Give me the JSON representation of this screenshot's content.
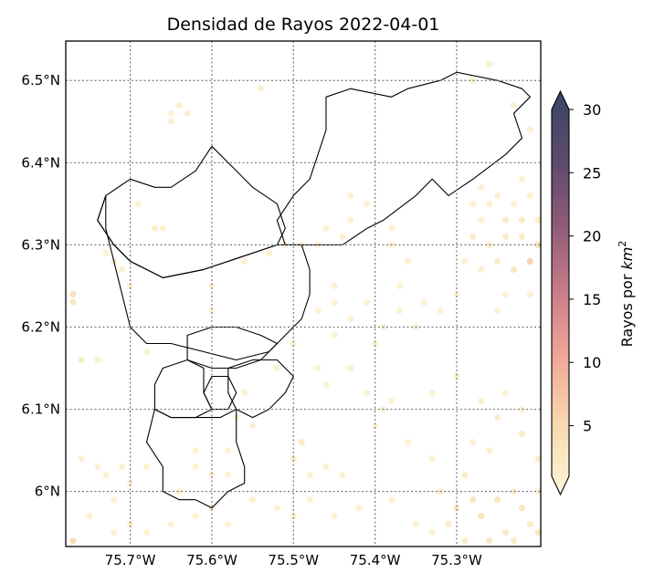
{
  "chart_data": {
    "type": "heatmap",
    "title": "Densidad de Rayos 2022-04-01",
    "xlabel": "",
    "ylabel": "",
    "xlim": [
      -75.779,
      -75.197
    ],
    "ylim": [
      5.933,
      6.548
    ],
    "x_ticks": [
      {
        "value": -75.7,
        "label": "75.7°W"
      },
      {
        "value": -75.6,
        "label": "75.6°W"
      },
      {
        "value": -75.5,
        "label": "75.5°W"
      },
      {
        "value": -75.4,
        "label": "75.4°W"
      },
      {
        "value": -75.3,
        "label": "75.3°W"
      }
    ],
    "y_ticks": [
      {
        "value": 6.0,
        "label": "6°N"
      },
      {
        "value": 6.1,
        "label": "6.1°N"
      },
      {
        "value": 6.2,
        "label": "6.2°N"
      },
      {
        "value": 6.3,
        "label": "6.3°N"
      },
      {
        "value": 6.4,
        "label": "6.4°N"
      },
      {
        "value": 6.5,
        "label": "6.5°N"
      }
    ],
    "grid": true,
    "colorbar": {
      "label": "Rayos por km²",
      "label_base": "Rayos por ",
      "label_var": "km",
      "label_exp": "2",
      "range": [
        1,
        30
      ],
      "extend": "both",
      "ticks": [
        {
          "value": 5,
          "label": "5"
        },
        {
          "value": 10,
          "label": "10"
        },
        {
          "value": 15,
          "label": "15"
        },
        {
          "value": 20,
          "label": "20"
        },
        {
          "value": 25,
          "label": "25"
        },
        {
          "value": 30,
          "label": "30"
        }
      ],
      "colors": [
        "#fdf6d6",
        "#f8dbb0",
        "#f1a997",
        "#c97d89",
        "#8f5b78",
        "#5b4a6d",
        "#3a4564"
      ]
    },
    "points": [
      [
        -75.77,
        5.94,
        6
      ],
      [
        -75.77,
        6.24,
        5
      ],
      [
        -75.77,
        6.23,
        4
      ],
      [
        -75.76,
        6.16,
        3
      ],
      [
        -75.74,
        6.16,
        2
      ],
      [
        -75.73,
        6.29,
        2
      ],
      [
        -75.71,
        6.27,
        2
      ],
      [
        -75.69,
        6.35,
        2
      ],
      [
        -75.68,
        6.17,
        2
      ],
      [
        -75.67,
        6.32,
        2
      ],
      [
        -75.76,
        6.04,
        2
      ],
      [
        -75.74,
        6.03,
        2
      ],
      [
        -75.73,
        6.02,
        2
      ],
      [
        -75.71,
        6.03,
        2
      ],
      [
        -75.7,
        6.01,
        2
      ],
      [
        -75.68,
        6.03,
        2
      ],
      [
        -75.72,
        5.99,
        2
      ],
      [
        -75.7,
        5.96,
        2
      ],
      [
        -75.75,
        5.97,
        2
      ],
      [
        -75.72,
        5.95,
        2
      ],
      [
        -75.68,
        5.95,
        2
      ],
      [
        -75.65,
        5.96,
        2
      ],
      [
        -75.62,
        5.97,
        2
      ],
      [
        -75.6,
        5.98,
        2
      ],
      [
        -75.64,
        6.0,
        2
      ],
      [
        -75.62,
        6.03,
        2
      ],
      [
        -75.58,
        6.02,
        2
      ],
      [
        -75.58,
        5.96,
        2
      ],
      [
        -75.55,
        5.99,
        2
      ],
      [
        -75.52,
        5.98,
        2
      ],
      [
        -75.5,
        6.04,
        3
      ],
      [
        -75.48,
        6.02,
        2
      ],
      [
        -75.46,
        6.03,
        2
      ],
      [
        -75.44,
        6.02,
        2
      ],
      [
        -75.48,
        5.99,
        2
      ],
      [
        -75.5,
        5.97,
        2
      ],
      [
        -75.45,
        5.97,
        2
      ],
      [
        -75.42,
        5.98,
        2
      ],
      [
        -75.38,
        5.99,
        2
      ],
      [
        -75.35,
        5.96,
        2
      ],
      [
        -75.32,
        6.0,
        3
      ],
      [
        -75.3,
        5.98,
        4
      ],
      [
        -75.29,
        6.02,
        3
      ],
      [
        -75.28,
        5.99,
        4
      ],
      [
        -75.27,
        5.97,
        5
      ],
      [
        -75.25,
        5.99,
        4
      ],
      [
        -75.23,
        6.0,
        3
      ],
      [
        -75.22,
        5.98,
        4
      ],
      [
        -75.21,
        5.96,
        3
      ],
      [
        -75.24,
        5.95,
        3
      ],
      [
        -75.31,
        5.96,
        3
      ],
      [
        -75.33,
        5.95,
        2
      ],
      [
        -75.29,
        5.94,
        3
      ],
      [
        -75.26,
        5.94,
        4
      ],
      [
        -75.23,
        5.94,
        3
      ],
      [
        -75.2,
        5.95,
        4
      ],
      [
        -75.2,
        6.0,
        2
      ],
      [
        -75.2,
        6.04,
        3
      ],
      [
        -75.22,
        6.07,
        3
      ],
      [
        -75.25,
        6.09,
        3
      ],
      [
        -75.27,
        6.11,
        3
      ],
      [
        -75.24,
        6.12,
        2
      ],
      [
        -75.22,
        6.1,
        2
      ],
      [
        -75.28,
        6.06,
        2
      ],
      [
        -75.26,
        6.05,
        2
      ],
      [
        -75.33,
        6.04,
        2
      ],
      [
        -75.36,
        6.06,
        2
      ],
      [
        -75.3,
        6.14,
        2
      ],
      [
        -75.33,
        6.12,
        2
      ],
      [
        -75.38,
        6.11,
        2
      ],
      [
        -75.28,
        6.31,
        3
      ],
      [
        -75.26,
        6.3,
        3
      ],
      [
        -75.24,
        6.31,
        3
      ],
      [
        -75.22,
        6.31,
        3
      ],
      [
        -75.2,
        6.3,
        5
      ],
      [
        -75.21,
        6.28,
        7
      ],
      [
        -75.23,
        6.27,
        4
      ],
      [
        -75.25,
        6.28,
        3
      ],
      [
        -75.27,
        6.27,
        2
      ],
      [
        -75.29,
        6.28,
        2
      ],
      [
        -75.24,
        6.33,
        3
      ],
      [
        -75.22,
        6.33,
        3
      ],
      [
        -75.2,
        6.33,
        3
      ],
      [
        -75.27,
        6.33,
        2
      ],
      [
        -75.26,
        6.35,
        2
      ],
      [
        -75.28,
        6.35,
        2
      ],
      [
        -75.24,
        6.24,
        2
      ],
      [
        -75.21,
        6.24,
        2
      ],
      [
        -75.25,
        6.22,
        2
      ],
      [
        -75.3,
        6.24,
        2
      ],
      [
        -75.32,
        6.22,
        2
      ],
      [
        -75.35,
        6.2,
        2
      ],
      [
        -75.37,
        6.22,
        2
      ],
      [
        -75.34,
        6.23,
        2
      ],
      [
        -75.39,
        6.2,
        2
      ],
      [
        -75.4,
        6.18,
        2
      ],
      [
        -75.45,
        6.19,
        2
      ],
      [
        -75.43,
        6.21,
        2
      ],
      [
        -75.47,
        6.22,
        2
      ],
      [
        -75.45,
        6.23,
        2
      ],
      [
        -75.47,
        6.15,
        2
      ],
      [
        -75.46,
        6.13,
        2
      ],
      [
        -75.43,
        6.15,
        2
      ],
      [
        -75.41,
        6.12,
        2
      ],
      [
        -75.4,
        6.08,
        2
      ],
      [
        -75.39,
        6.1,
        2
      ],
      [
        -75.5,
        6.18,
        2
      ],
      [
        -75.52,
        6.15,
        2
      ],
      [
        -75.56,
        6.12,
        2
      ],
      [
        -75.57,
        6.09,
        2
      ],
      [
        -75.55,
        6.08,
        2
      ],
      [
        -75.58,
        6.05,
        2
      ],
      [
        -75.62,
        6.05,
        2
      ],
      [
        -75.6,
        6.02,
        2
      ],
      [
        -75.6,
        6.25,
        2
      ],
      [
        -75.56,
        6.28,
        2
      ],
      [
        -75.53,
        6.29,
        2
      ],
      [
        -75.51,
        6.3,
        2
      ],
      [
        -75.49,
        6.3,
        2
      ],
      [
        -75.47,
        6.3,
        2
      ],
      [
        -75.46,
        6.32,
        2
      ],
      [
        -75.44,
        6.31,
        2
      ],
      [
        -75.43,
        6.33,
        2
      ],
      [
        -75.41,
        6.35,
        2
      ],
      [
        -75.43,
        6.36,
        2
      ],
      [
        -75.38,
        6.3,
        2
      ],
      [
        -75.36,
        6.28,
        2
      ],
      [
        -75.45,
        6.25,
        2
      ],
      [
        -75.41,
        6.23,
        2
      ],
      [
        -75.37,
        6.25,
        2
      ],
      [
        -75.65,
        6.46,
        2
      ],
      [
        -75.64,
        6.47,
        2
      ],
      [
        -75.65,
        6.45,
        2
      ],
      [
        -75.63,
        6.46,
        2
      ],
      [
        -75.54,
        6.49,
        2
      ],
      [
        -75.28,
        6.5,
        2
      ],
      [
        -75.26,
        6.52,
        2
      ],
      [
        -75.23,
        6.47,
        2
      ],
      [
        -75.21,
        6.44,
        2
      ],
      [
        -75.27,
        6.37,
        2
      ],
      [
        -75.25,
        6.36,
        2
      ],
      [
        -75.23,
        6.35,
        2
      ],
      [
        -75.21,
        6.36,
        2
      ],
      [
        -75.22,
        6.38,
        2
      ],
      [
        -75.66,
        6.32,
        2
      ],
      [
        -75.72,
        6.28,
        2
      ],
      [
        -75.7,
        6.25,
        2
      ],
      [
        -75.6,
        6.22,
        2
      ],
      [
        -75.49,
        6.06,
        3
      ],
      [
        -75.38,
        6.32,
        2
      ]
    ],
    "regions": [
      {
        "name": "north-east",
        "path": [
          [
            -75.46,
            6.48
          ],
          [
            -75.43,
            6.49
          ],
          [
            -75.38,
            6.48
          ],
          [
            -75.36,
            6.49
          ],
          [
            -75.32,
            6.5
          ],
          [
            -75.3,
            6.51
          ],
          [
            -75.25,
            6.5
          ],
          [
            -75.22,
            6.49
          ],
          [
            -75.21,
            6.48
          ],
          [
            -75.23,
            6.46
          ],
          [
            -75.22,
            6.43
          ],
          [
            -75.24,
            6.41
          ],
          [
            -75.28,
            6.38
          ],
          [
            -75.31,
            6.36
          ],
          [
            -75.33,
            6.38
          ],
          [
            -75.35,
            6.36
          ],
          [
            -75.39,
            6.33
          ],
          [
            -75.41,
            6.32
          ],
          [
            -75.44,
            6.3
          ],
          [
            -75.48,
            6.3
          ],
          [
            -75.51,
            6.3
          ],
          [
            -75.52,
            6.33
          ],
          [
            -75.5,
            6.36
          ],
          [
            -75.48,
            6.38
          ],
          [
            -75.47,
            6.41
          ],
          [
            -75.46,
            6.44
          ],
          [
            -75.46,
            6.48
          ]
        ]
      },
      {
        "name": "north-middle",
        "path": [
          [
            -75.6,
            6.42
          ],
          [
            -75.62,
            6.39
          ],
          [
            -75.65,
            6.37
          ],
          [
            -75.67,
            6.37
          ],
          [
            -75.7,
            6.38
          ],
          [
            -75.73,
            6.36
          ],
          [
            -75.74,
            6.33
          ],
          [
            -75.72,
            6.3
          ],
          [
            -75.7,
            6.28
          ],
          [
            -75.66,
            6.26
          ],
          [
            -75.61,
            6.27
          ],
          [
            -75.58,
            6.28
          ],
          [
            -75.55,
            6.29
          ],
          [
            -75.52,
            6.3
          ],
          [
            -75.51,
            6.32
          ],
          [
            -75.52,
            6.35
          ],
          [
            -75.55,
            6.37
          ],
          [
            -75.58,
            6.4
          ],
          [
            -75.6,
            6.42
          ]
        ]
      },
      {
        "name": "west-large",
        "path": [
          [
            -75.73,
            6.36
          ],
          [
            -75.74,
            6.33
          ],
          [
            -75.72,
            6.3
          ],
          [
            -75.7,
            6.28
          ],
          [
            -75.66,
            6.26
          ],
          [
            -75.61,
            6.27
          ],
          [
            -75.55,
            6.29
          ],
          [
            -75.52,
            6.3
          ],
          [
            -75.49,
            6.3
          ],
          [
            -75.48,
            6.27
          ],
          [
            -75.48,
            6.24
          ],
          [
            -75.49,
            6.21
          ],
          [
            -75.51,
            6.19
          ],
          [
            -75.53,
            6.17
          ],
          [
            -75.57,
            6.16
          ],
          [
            -75.61,
            6.17
          ],
          [
            -75.65,
            6.18
          ],
          [
            -75.68,
            6.18
          ],
          [
            -75.7,
            6.2
          ],
          [
            -75.71,
            6.24
          ],
          [
            -75.72,
            6.28
          ],
          [
            -75.73,
            6.32
          ],
          [
            -75.73,
            6.36
          ]
        ]
      },
      {
        "name": "central-small-a",
        "path": [
          [
            -75.63,
            6.19
          ],
          [
            -75.6,
            6.2
          ],
          [
            -75.57,
            6.2
          ],
          [
            -75.54,
            6.19
          ],
          [
            -75.52,
            6.18
          ],
          [
            -75.54,
            6.16
          ],
          [
            -75.57,
            6.15
          ],
          [
            -75.6,
            6.15
          ],
          [
            -75.63,
            6.16
          ],
          [
            -75.63,
            6.19
          ]
        ]
      },
      {
        "name": "central-small-b",
        "path": [
          [
            -75.66,
            6.15
          ],
          [
            -75.63,
            6.16
          ],
          [
            -75.61,
            6.15
          ],
          [
            -75.61,
            6.12
          ],
          [
            -75.6,
            6.1
          ],
          [
            -75.62,
            6.09
          ],
          [
            -75.65,
            6.09
          ],
          [
            -75.67,
            6.1
          ],
          [
            -75.67,
            6.13
          ],
          [
            -75.66,
            6.15
          ]
        ]
      },
      {
        "name": "central-small-c",
        "path": [
          [
            -75.58,
            6.15
          ],
          [
            -75.55,
            6.16
          ],
          [
            -75.52,
            6.16
          ],
          [
            -75.5,
            6.14
          ],
          [
            -75.51,
            6.12
          ],
          [
            -75.53,
            6.1
          ],
          [
            -75.55,
            6.09
          ],
          [
            -75.57,
            6.1
          ],
          [
            -75.58,
            6.12
          ],
          [
            -75.58,
            6.15
          ]
        ]
      },
      {
        "name": "central-small-d",
        "path": [
          [
            -75.61,
            6.12
          ],
          [
            -75.6,
            6.1
          ],
          [
            -75.58,
            6.1
          ],
          [
            -75.57,
            6.12
          ],
          [
            -75.58,
            6.14
          ],
          [
            -75.6,
            6.14
          ],
          [
            -75.61,
            6.12
          ]
        ]
      },
      {
        "name": "south",
        "path": [
          [
            -75.67,
            6.1
          ],
          [
            -75.65,
            6.09
          ],
          [
            -75.62,
            6.09
          ],
          [
            -75.59,
            6.09
          ],
          [
            -75.57,
            6.1
          ],
          [
            -75.57,
            6.06
          ],
          [
            -75.56,
            6.03
          ],
          [
            -75.56,
            6.01
          ],
          [
            -75.58,
            6.0
          ],
          [
            -75.6,
            5.98
          ],
          [
            -75.62,
            5.99
          ],
          [
            -75.64,
            5.99
          ],
          [
            -75.66,
            6.0
          ],
          [
            -75.66,
            6.03
          ],
          [
            -75.68,
            6.06
          ],
          [
            -75.67,
            6.1
          ]
        ]
      }
    ]
  }
}
